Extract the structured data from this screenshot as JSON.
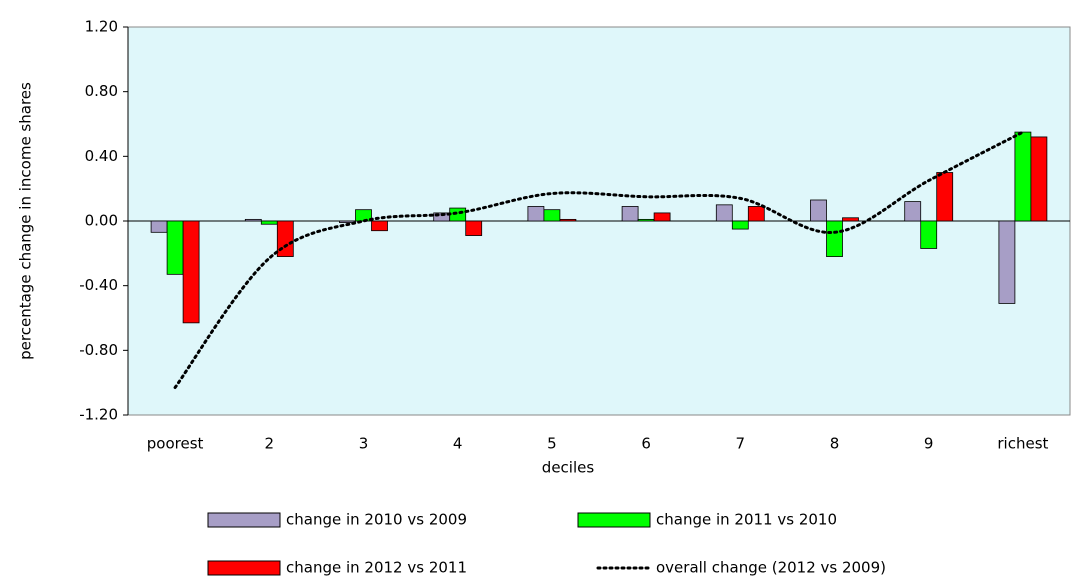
{
  "chart_data": {
    "type": "bar_line",
    "x_label": "deciles",
    "y_label": "percentage change in income shares",
    "categories": [
      "poorest",
      "2",
      "3",
      "4",
      "5",
      "6",
      "7",
      "8",
      "9",
      "richest"
    ],
    "series": [
      {
        "name": "change in 2010 vs 2009",
        "type": "bar",
        "color": "#a79ec6",
        "values": [
          -0.07,
          0.01,
          -0.01,
          0.05,
          0.09,
          0.09,
          0.1,
          0.13,
          0.12,
          -0.51
        ]
      },
      {
        "name": "change in 2011 vs 2010",
        "type": "bar",
        "color": "#00ff00",
        "values": [
          -0.33,
          -0.02,
          0.07,
          0.08,
          0.07,
          0.01,
          -0.05,
          -0.22,
          -0.17,
          0.55
        ]
      },
      {
        "name": "change in 2012 vs 2011",
        "type": "bar",
        "color": "#ff0000",
        "values": [
          -0.63,
          -0.22,
          -0.06,
          -0.09,
          0.01,
          0.05,
          0.09,
          0.02,
          0.3,
          0.52
        ]
      },
      {
        "name": "overall change (2012 vs 2009)",
        "type": "line",
        "color": "#000000",
        "values": [
          -1.03,
          -0.23,
          0.0,
          0.05,
          0.17,
          0.15,
          0.14,
          -0.07,
          0.25,
          0.55
        ]
      }
    ],
    "ylim": [
      -1.2,
      1.2
    ],
    "yticks": [
      {
        "value": -1.2,
        "label": "-1.20"
      },
      {
        "value": -0.8,
        "label": "-0.80"
      },
      {
        "value": -0.4,
        "label": "-0.40"
      },
      {
        "value": 0,
        "label": "0.00"
      },
      {
        "value": 0.4,
        "label": "0.40"
      },
      {
        "value": 0.8,
        "label": "0.80"
      },
      {
        "value": 1.2,
        "label": "1.20"
      }
    ],
    "plot_background": "#dff7fa"
  }
}
